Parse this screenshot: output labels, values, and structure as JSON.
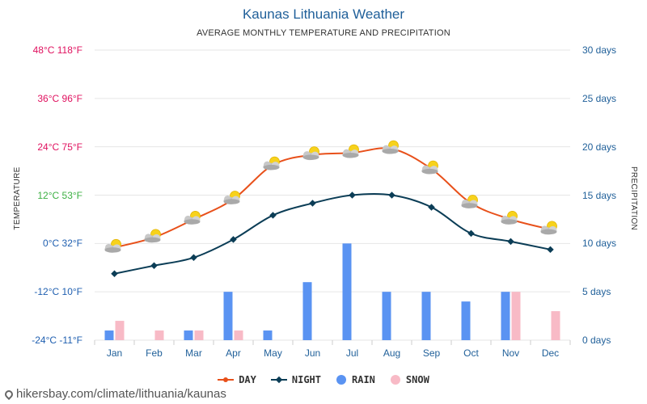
{
  "title": "Kaunas Lithuania Weather",
  "subtitle": "AVERAGE MONTHLY TEMPERATURE AND PRECIPITATION",
  "left_axis_label": "TEMPERATURE",
  "right_axis_label": "PRECIPITATION",
  "left_ticks": [
    {
      "label": "48°C 118°F",
      "color": "#e0115f"
    },
    {
      "label": "36°C 96°F",
      "color": "#e0115f"
    },
    {
      "label": "24°C 75°F",
      "color": "#e0115f"
    },
    {
      "label": "12°C 53°F",
      "color": "#3cb043"
    },
    {
      "label": "0°C 32°F",
      "color": "#1f5fb0"
    },
    {
      "label": "-12°C 10°F",
      "color": "#1f5fb0"
    },
    {
      "label": "-24°C -11°F",
      "color": "#1f5fb0"
    }
  ],
  "right_ticks": [
    "30 days",
    "25 days",
    "20 days",
    "15 days",
    "10 days",
    "5 days",
    "0 days"
  ],
  "legend": {
    "day": "DAY",
    "night": "NIGHT",
    "rain": "RAIN",
    "snow": "SNOW"
  },
  "footer": "hikersbay.com/climate/lithuania/kaunas",
  "colors": {
    "day": "#e8501a",
    "night": "#0b3d56",
    "rain": "#5a93f2",
    "snow": "#f8bac6",
    "grid": "#e6e6e6"
  },
  "chart_data": {
    "type": "line",
    "categories": [
      "Jan",
      "Feb",
      "Mar",
      "Apr",
      "May",
      "Jun",
      "Jul",
      "Aug",
      "Sep",
      "Oct",
      "Nov",
      "Dec"
    ],
    "temp_ylim": [
      -24,
      48
    ],
    "precip_ylim": [
      0,
      30
    ],
    "series": [
      {
        "name": "DAY",
        "axis": "temperature",
        "values": [
          -1,
          1.5,
          6,
          11,
          19.5,
          22,
          22.5,
          23.5,
          18.5,
          10,
          6,
          3.5
        ]
      },
      {
        "name": "NIGHT",
        "axis": "temperature",
        "values": [
          -7.5,
          -5.5,
          -3.5,
          1,
          7,
          10,
          12,
          12,
          9,
          2.5,
          0.5,
          -1.5
        ]
      },
      {
        "name": "RAIN",
        "axis": "precipitation",
        "values": [
          1,
          0,
          1,
          5,
          1,
          6,
          10,
          5,
          5,
          4,
          5,
          0
        ]
      },
      {
        "name": "SNOW",
        "axis": "precipitation",
        "values": [
          2,
          1,
          1,
          1,
          0,
          0,
          0,
          0,
          0,
          0,
          5,
          3
        ]
      }
    ],
    "weather_icon": "sun-behind-cloud-icon",
    "grid": true,
    "legend_position": "bottom"
  }
}
